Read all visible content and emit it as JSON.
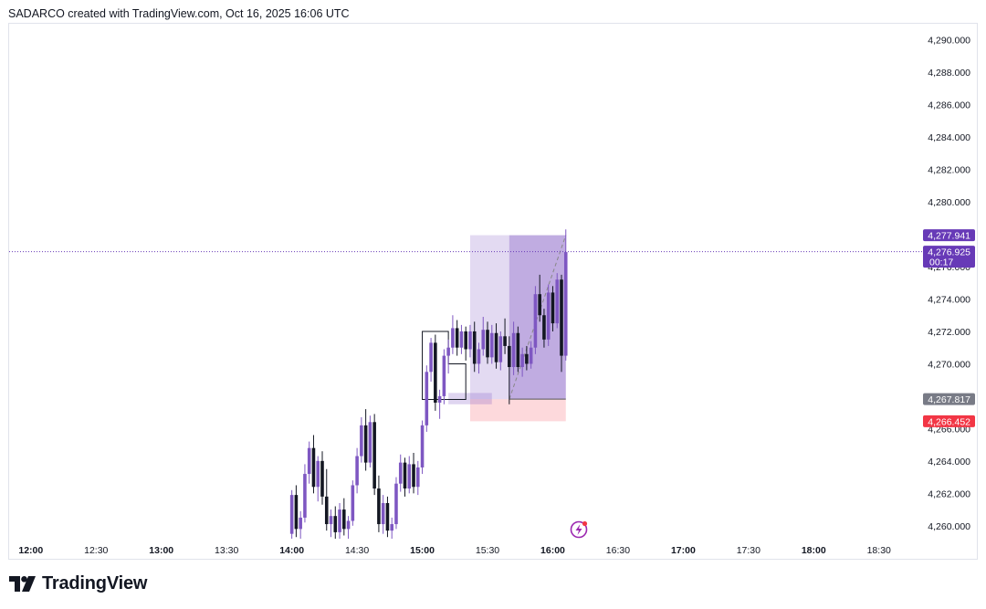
{
  "header": {
    "caption": "SADARCO created with TradingView.com, Oct 16, 2025 16:06 UTC"
  },
  "brand": {
    "logo_text": "TradingView"
  },
  "colors": {
    "candle_up": "#7e57c2",
    "candle_down": "#131722",
    "profit_zone": "#7e57c2",
    "stop_zone": "#f7525f",
    "price_tag_current": "#673ab7",
    "price_tag_entry": "#787b86",
    "price_tag_stop": "#f23645"
  },
  "chart_data": {
    "type": "candlestick",
    "symbol": "",
    "y_axis": {
      "ticks": [
        "4,260.000",
        "4,262.000",
        "4,264.000",
        "4,266.000",
        "4,268.000",
        "4,270.000",
        "4,272.000",
        "4,274.000",
        "4,276.000",
        "4,278.000",
        "4,280.000",
        "4,282.000",
        "4,284.000",
        "4,286.000",
        "4,288.000",
        "4,290.000"
      ],
      "tick_values": [
        4260,
        4262,
        4264,
        4266,
        4268,
        4270,
        4272,
        4274,
        4276,
        4278,
        4280,
        4282,
        4284,
        4286,
        4288,
        4290
      ],
      "range": [
        4259.2,
        4291.0
      ]
    },
    "x_axis": {
      "ticks": [
        "12:00",
        "12:30",
        "13:00",
        "13:30",
        "14:00",
        "14:30",
        "15:00",
        "15:30",
        "16:00",
        "16:30",
        "17:00",
        "17:30",
        "18:00",
        "18:30"
      ],
      "tick_minutes": [
        720,
        750,
        780,
        810,
        840,
        870,
        900,
        930,
        960,
        990,
        1020,
        1050,
        1080,
        1110
      ],
      "bold_ticks": [
        "12:00",
        "13:00",
        "14:00",
        "15:00",
        "16:00",
        "17:00",
        "18:00"
      ],
      "range_minutes": [
        710,
        1129
      ]
    },
    "price_tags": [
      {
        "label": "4,277.941",
        "value": 4277.941,
        "kind": "target"
      },
      {
        "label": "4,276.925",
        "sublabel": "00:17",
        "value": 4276.925,
        "kind": "current"
      },
      {
        "label": "4,267.817",
        "value": 4267.817,
        "kind": "entry"
      },
      {
        "label": "4,266.452",
        "value": 4266.452,
        "kind": "stop"
      }
    ],
    "current_price": 4276.925,
    "position": {
      "type": "long",
      "entry": 4267.817,
      "target": 4277.941,
      "stop": 4266.452,
      "start_minute": 922,
      "end_minute": 966,
      "second_start_minute": 940
    },
    "entry_box": {
      "start_minute": 912,
      "end_minute": 932,
      "top": 4268.2,
      "bottom": 4267.5
    },
    "step_line": [
      [
        910,
        4267.8
      ],
      [
        920,
        4267.8
      ],
      [
        920,
        4270.0
      ],
      [
        912,
        4270.0
      ],
      [
        912,
        4272.0
      ],
      [
        900,
        4272.0
      ],
      [
        900,
        4267.8
      ],
      [
        912,
        4267.8
      ]
    ],
    "candles": [
      {
        "t": 840,
        "o": 4259.5,
        "h": 4262.2,
        "l": 4259.0,
        "c": 4261.9
      },
      {
        "t": 842,
        "o": 4261.9,
        "h": 4262.5,
        "l": 4259.3,
        "c": 4259.8
      },
      {
        "t": 844,
        "o": 4259.8,
        "h": 4260.9,
        "l": 4259.1,
        "c": 4260.5
      },
      {
        "t": 846,
        "o": 4260.5,
        "h": 4263.8,
        "l": 4260.2,
        "c": 4263.2
      },
      {
        "t": 848,
        "o": 4263.2,
        "h": 4265.2,
        "l": 4262.6,
        "c": 4264.8
      },
      {
        "t": 850,
        "o": 4264.8,
        "h": 4265.6,
        "l": 4262.0,
        "c": 4262.4
      },
      {
        "t": 852,
        "o": 4262.4,
        "h": 4264.3,
        "l": 4261.5,
        "c": 4264.0
      },
      {
        "t": 854,
        "o": 4264.0,
        "h": 4264.6,
        "l": 4261.3,
        "c": 4261.8
      },
      {
        "t": 856,
        "o": 4261.8,
        "h": 4263.5,
        "l": 4259.7,
        "c": 4260.1
      },
      {
        "t": 858,
        "o": 4260.1,
        "h": 4261.0,
        "l": 4259.3,
        "c": 4260.6
      },
      {
        "t": 860,
        "o": 4260.6,
        "h": 4261.2,
        "l": 4259.2,
        "c": 4259.6
      },
      {
        "t": 862,
        "o": 4259.6,
        "h": 4261.4,
        "l": 4259.2,
        "c": 4261.0
      },
      {
        "t": 864,
        "o": 4261.0,
        "h": 4261.7,
        "l": 4259.4,
        "c": 4259.8
      },
      {
        "t": 866,
        "o": 4259.8,
        "h": 4260.6,
        "l": 4259.2,
        "c": 4260.3
      },
      {
        "t": 868,
        "o": 4260.3,
        "h": 4262.8,
        "l": 4260.0,
        "c": 4262.5
      },
      {
        "t": 870,
        "o": 4262.5,
        "h": 4264.8,
        "l": 4262.0,
        "c": 4264.3
      },
      {
        "t": 872,
        "o": 4264.3,
        "h": 4266.7,
        "l": 4263.9,
        "c": 4266.2
      },
      {
        "t": 874,
        "o": 4266.2,
        "h": 4267.2,
        "l": 4263.4,
        "c": 4263.9
      },
      {
        "t": 876,
        "o": 4263.9,
        "h": 4266.8,
        "l": 4263.6,
        "c": 4266.4
      },
      {
        "t": 878,
        "o": 4266.4,
        "h": 4266.9,
        "l": 4261.9,
        "c": 4262.3
      },
      {
        "t": 880,
        "o": 4262.3,
        "h": 4263.1,
        "l": 4259.6,
        "c": 4260.1
      },
      {
        "t": 882,
        "o": 4260.1,
        "h": 4261.9,
        "l": 4259.5,
        "c": 4261.4
      },
      {
        "t": 884,
        "o": 4261.4,
        "h": 4261.8,
        "l": 4259.3,
        "c": 4259.7
      },
      {
        "t": 886,
        "o": 4259.7,
        "h": 4260.5,
        "l": 4259.2,
        "c": 4260.1
      },
      {
        "t": 888,
        "o": 4260.1,
        "h": 4263.0,
        "l": 4259.8,
        "c": 4262.6
      },
      {
        "t": 890,
        "o": 4262.6,
        "h": 4264.4,
        "l": 4262.1,
        "c": 4263.9
      },
      {
        "t": 892,
        "o": 4263.9,
        "h": 4264.2,
        "l": 4261.8,
        "c": 4262.3
      },
      {
        "t": 894,
        "o": 4262.3,
        "h": 4264.3,
        "l": 4262.0,
        "c": 4263.8
      },
      {
        "t": 896,
        "o": 4263.8,
        "h": 4264.5,
        "l": 4262.0,
        "c": 4262.4
      },
      {
        "t": 898,
        "o": 4262.4,
        "h": 4264.0,
        "l": 4261.9,
        "c": 4263.6
      },
      {
        "t": 900,
        "o": 4263.6,
        "h": 4266.5,
        "l": 4263.2,
        "c": 4266.2
      },
      {
        "t": 902,
        "o": 4266.2,
        "h": 4269.9,
        "l": 4265.8,
        "c": 4269.5
      },
      {
        "t": 904,
        "o": 4269.5,
        "h": 4271.6,
        "l": 4268.9,
        "c": 4271.3
      },
      {
        "t": 906,
        "o": 4271.3,
        "h": 4271.8,
        "l": 4267.1,
        "c": 4267.6
      },
      {
        "t": 908,
        "o": 4267.6,
        "h": 4268.4,
        "l": 4266.6,
        "c": 4268.0
      },
      {
        "t": 910,
        "o": 4268.0,
        "h": 4270.9,
        "l": 4267.5,
        "c": 4270.5
      },
      {
        "t": 912,
        "o": 4270.5,
        "h": 4271.5,
        "l": 4269.4,
        "c": 4271.0
      },
      {
        "t": 914,
        "o": 4271.0,
        "h": 4273.0,
        "l": 4270.6,
        "c": 4272.2
      },
      {
        "t": 916,
        "o": 4272.2,
        "h": 4272.7,
        "l": 4270.5,
        "c": 4271.0
      },
      {
        "t": 918,
        "o": 4271.0,
        "h": 4272.4,
        "l": 4270.6,
        "c": 4272.0
      },
      {
        "t": 920,
        "o": 4272.0,
        "h": 4272.3,
        "l": 4270.2,
        "c": 4270.9
      },
      {
        "t": 922,
        "o": 4270.9,
        "h": 4272.4,
        "l": 4270.4,
        "c": 4272.0
      },
      {
        "t": 924,
        "o": 4272.0,
        "h": 4272.6,
        "l": 4269.5,
        "c": 4270.0
      },
      {
        "t": 926,
        "o": 4270.0,
        "h": 4271.3,
        "l": 4269.4,
        "c": 4270.9
      },
      {
        "t": 928,
        "o": 4270.9,
        "h": 4272.9,
        "l": 4270.5,
        "c": 4272.1
      },
      {
        "t": 930,
        "o": 4272.1,
        "h": 4272.6,
        "l": 4270.0,
        "c": 4270.4
      },
      {
        "t": 932,
        "o": 4270.4,
        "h": 4272.4,
        "l": 4270.0,
        "c": 4271.9
      },
      {
        "t": 934,
        "o": 4271.9,
        "h": 4272.5,
        "l": 4269.7,
        "c": 4270.1
      },
      {
        "t": 936,
        "o": 4270.1,
        "h": 4272.0,
        "l": 4269.6,
        "c": 4271.7
      },
      {
        "t": 938,
        "o": 4271.7,
        "h": 4272.8,
        "l": 4270.6,
        "c": 4271.1
      },
      {
        "t": 940,
        "o": 4271.1,
        "h": 4271.7,
        "l": 4267.5,
        "c": 4269.8
      },
      {
        "t": 942,
        "o": 4269.8,
        "h": 4272.6,
        "l": 4269.3,
        "c": 4271.9
      },
      {
        "t": 944,
        "o": 4271.9,
        "h": 4272.3,
        "l": 4269.5,
        "c": 4269.8
      },
      {
        "t": 946,
        "o": 4269.8,
        "h": 4271.0,
        "l": 4269.2,
        "c": 4270.6
      },
      {
        "t": 948,
        "o": 4270.6,
        "h": 4271.1,
        "l": 4269.6,
        "c": 4270.0
      },
      {
        "t": 950,
        "o": 4270.0,
        "h": 4271.4,
        "l": 4269.7,
        "c": 4271.0
      },
      {
        "t": 952,
        "o": 4271.0,
        "h": 4274.8,
        "l": 4270.6,
        "c": 4274.3
      },
      {
        "t": 954,
        "o": 4274.3,
        "h": 4275.5,
        "l": 4272.6,
        "c": 4273.0
      },
      {
        "t": 956,
        "o": 4273.0,
        "h": 4273.4,
        "l": 4271.0,
        "c": 4271.5
      },
      {
        "t": 958,
        "o": 4271.5,
        "h": 4274.9,
        "l": 4271.1,
        "c": 4274.4
      },
      {
        "t": 960,
        "o": 4274.4,
        "h": 4274.8,
        "l": 4272.0,
        "c": 4272.5
      },
      {
        "t": 962,
        "o": 4272.5,
        "h": 4275.6,
        "l": 4272.2,
        "c": 4275.2
      },
      {
        "t": 964,
        "o": 4275.2,
        "h": 4275.5,
        "l": 4269.5,
        "c": 4270.5
      },
      {
        "t": 966,
        "o": 4270.5,
        "h": 4278.3,
        "l": 4270.2,
        "c": 4276.9
      }
    ]
  }
}
